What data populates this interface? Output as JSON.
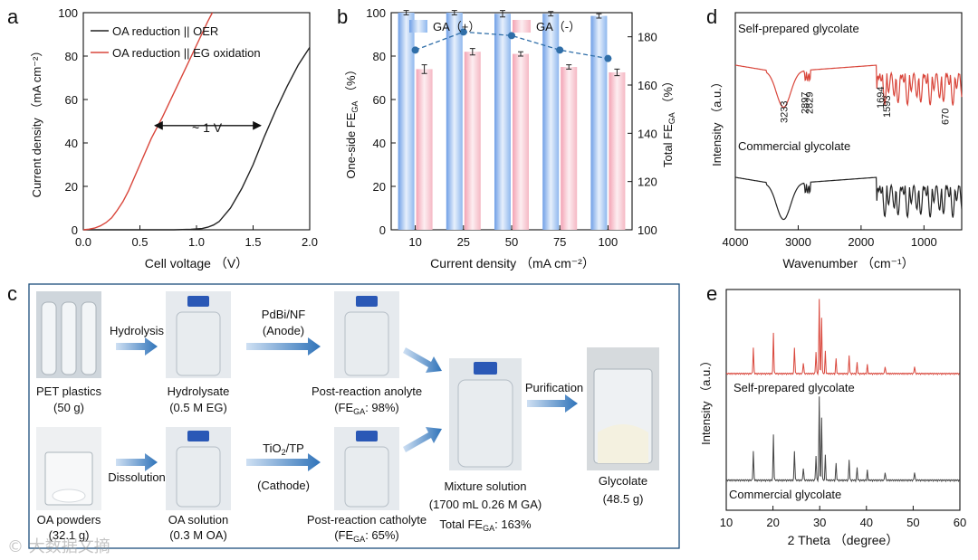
{
  "chart_data": [
    {
      "panel": "a",
      "type": "line",
      "xlabel": "Cell voltage （V）",
      "ylabel": "Current density （mA cm⁻²）",
      "xlim": [
        0,
        2.0
      ],
      "ylim": [
        0,
        100
      ],
      "xticks": [
        "0.0",
        "0.5",
        "1.0",
        "1.5",
        "2.0"
      ],
      "yticks": [
        "0",
        "20",
        "40",
        "60",
        "80",
        "100"
      ],
      "legend_position": "top-left",
      "annotation": "~ 1 V",
      "arrow_x": [
        0.6,
        1.6
      ],
      "arrow_y": 48,
      "series": [
        {
          "name": "OA reduction || OER",
          "color": "#222222",
          "x": [
            0.0,
            0.5,
            0.8,
            0.95,
            1.05,
            1.1,
            1.15,
            1.2,
            1.3,
            1.4,
            1.5,
            1.6,
            1.7,
            1.8,
            1.9,
            2.0
          ],
          "y": [
            0,
            0,
            0,
            0.2,
            0.6,
            1.2,
            2.2,
            3.8,
            10,
            19,
            30,
            43,
            55,
            66,
            76,
            84
          ]
        },
        {
          "name": "OA reduction || EG oxidation",
          "color": "#d9463b",
          "x": [
            0.0,
            0.05,
            0.1,
            0.15,
            0.2,
            0.25,
            0.3,
            0.35,
            0.4,
            0.5,
            0.6,
            0.7,
            0.8,
            0.9,
            1.0,
            1.1,
            1.14
          ],
          "y": [
            0,
            0.3,
            0.8,
            1.8,
            3.3,
            5.5,
            9,
            13,
            18,
            30,
            42,
            52,
            63,
            74,
            85,
            96,
            100
          ]
        }
      ]
    },
    {
      "panel": "b",
      "type": "bar",
      "xlabel": "Current density （mA cm⁻²）",
      "ylabel": "One-side FE_GA （%）",
      "ylabel_right": "Total FE_GA （%）",
      "categories": [
        "10",
        "25",
        "50",
        "75",
        "100"
      ],
      "ylim": [
        0,
        100
      ],
      "ylim_right": [
        100,
        190
      ],
      "yticks": [
        "0",
        "20",
        "40",
        "60",
        "80",
        "100"
      ],
      "yticks_right": [
        "100",
        "120",
        "140",
        "160",
        "180"
      ],
      "legend_position": "top",
      "series": [
        {
          "name": "GA（+）",
          "color": "#8fb8ee",
          "values": [
            100,
            100,
            99.5,
            99.5,
            98.5
          ],
          "errors": [
            1,
            1,
            1.5,
            1,
            1
          ]
        },
        {
          "name": "GA（-）",
          "color": "#f5b8c4",
          "values": [
            74,
            82,
            81,
            75,
            72.5
          ],
          "errors": [
            2,
            1.5,
            1,
            1,
            1.5
          ]
        }
      ],
      "total_series": {
        "name": "Total FE_GA",
        "color": "#2f6ea8",
        "values": [
          174.5,
          182,
          180.5,
          174.5,
          171
        ]
      }
    },
    {
      "panel": "c",
      "type": "table",
      "steps": [
        {
          "id": "pet",
          "label": "PET plastics",
          "sub": "(50 g)"
        },
        {
          "id": "hydrolysate",
          "label": "Hydrolysate",
          "sub": "(0.5 M EG)"
        },
        {
          "id": "anolyte",
          "label": "Post-reaction anolyte",
          "sub": "(FE_GA: 98%)"
        },
        {
          "id": "oa_powders",
          "label": "OA powders",
          "sub": "(32.1 g)"
        },
        {
          "id": "oa_solution",
          "label": "OA solution",
          "sub": "(0.3 M OA)"
        },
        {
          "id": "catholyte",
          "label": "Post-reaction catholyte",
          "sub": "(FE_GA: 65%)"
        },
        {
          "id": "mixture",
          "label": "Mixture solution",
          "sub": "(1700 mL 0.26 M GA)",
          "sub2": "Total FE_GA: 163%"
        },
        {
          "id": "glycolate",
          "label": "Glycolate",
          "sub": "(48.5 g)"
        }
      ],
      "arrows": {
        "hydrolysis": "Hydrolysis",
        "dissolution": "Dissolution",
        "anode_catalyst": "PdBi/NF",
        "anode": "(Anode)",
        "cathode_catalyst": "TiO₂/TP",
        "cathode": "(Cathode)",
        "purification": "Purification"
      }
    },
    {
      "panel": "d",
      "type": "line",
      "xlabel": "Wavenumber （cm⁻¹）",
      "ylabel": "Intensity （a.u.）",
      "xlim": [
        4000,
        400
      ],
      "xticks": [
        "4000",
        "3000",
        "2000",
        "1000"
      ],
      "peak_labels": [
        "3233",
        "2897",
        "2829",
        "1694",
        "1593",
        "670"
      ],
      "series": [
        {
          "name": "Self-prepared glycolate",
          "color": "#d9463b"
        },
        {
          "name": "Commercial glycolate",
          "color": "#222222"
        }
      ]
    },
    {
      "panel": "e",
      "type": "line",
      "xlabel": "2 Theta （degree）",
      "ylabel": "Intensity （a.u.）",
      "xlim": [
        10,
        60
      ],
      "xticks": [
        "10",
        "20",
        "30",
        "40",
        "50",
        "60"
      ],
      "series": [
        {
          "name": "Self-prepared glycolate",
          "color": "#d9463b"
        },
        {
          "name": "Commercial glycolate",
          "color": "#444444"
        }
      ]
    }
  ],
  "panel_letters": [
    "a",
    "b",
    "c",
    "d",
    "e"
  ],
  "watermark": "© 大数据文摘"
}
